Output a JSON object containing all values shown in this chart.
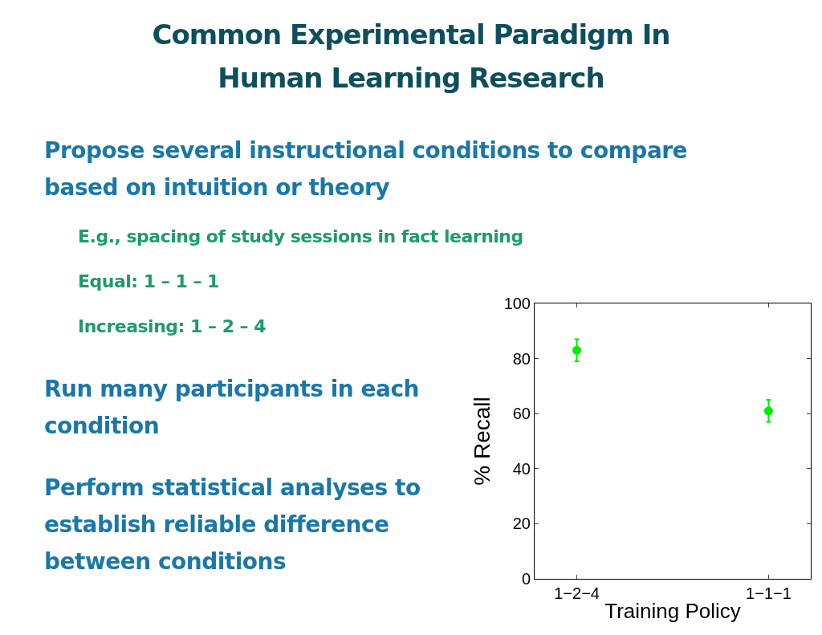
{
  "chart_data": {
    "type": "scatter",
    "title": "Common Experimental Paradigm In\nHuman Learning Research",
    "annotations": [
      "Propose several instructional conditions to compare based on intuition or theory",
      "E.g., spacing of study sessions in fact learning",
      "Equal: 1 – 1 – 1",
      "Increasing: 1 – 2 – 4",
      "Run many participants in each condition",
      "Perform statistical analyses to establish reliable difference between conditions"
    ],
    "categories": [
      "1−2−4",
      "1−1−1"
    ],
    "values": [
      83,
      61
    ],
    "errors": [
      4,
      4
    ],
    "color": "#00ee00",
    "marker": "circle",
    "xlabel": "Training Policy",
    "ylabel": "% Recall",
    "ylim": [
      0,
      100
    ],
    "yticks": [
      0,
      20,
      40,
      60,
      80,
      100
    ],
    "grid": false
  }
}
